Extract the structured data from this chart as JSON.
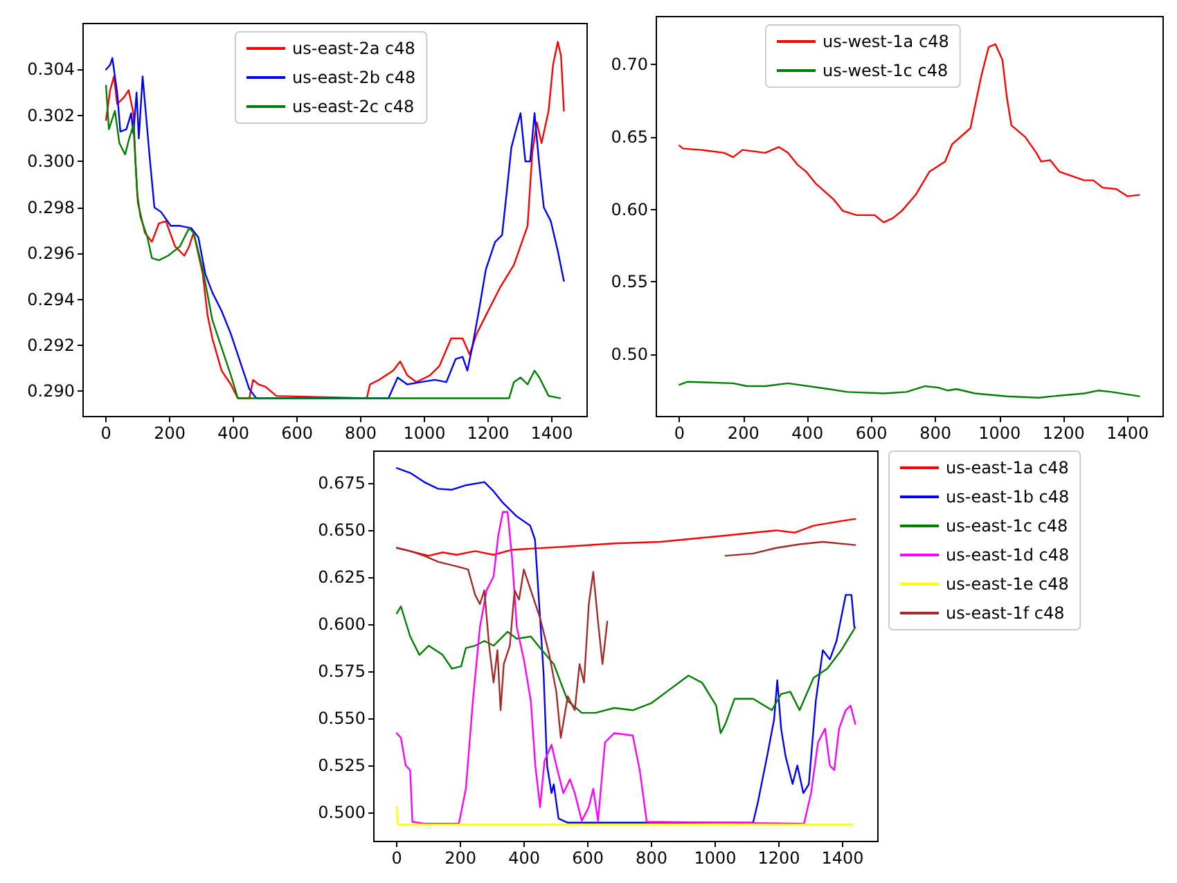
{
  "chart_data": [
    {
      "type": "line",
      "legend": "top",
      "xlim": [
        -72,
        1511
      ],
      "ylim": [
        0.2889,
        0.306
      ],
      "xticks": [
        0,
        200,
        400,
        600,
        800,
        1000,
        1200,
        1400
      ],
      "yticks": [
        {
          "value": 0.29,
          "label": "0.290"
        },
        {
          "value": 0.292,
          "label": "0.292"
        },
        {
          "value": 0.294,
          "label": "0.294"
        },
        {
          "value": 0.296,
          "label": "0.296"
        },
        {
          "value": 0.298,
          "label": "0.298"
        },
        {
          "value": 0.3,
          "label": "0.300"
        },
        {
          "value": 0.302,
          "label": "0.302"
        },
        {
          "value": 0.304,
          "label": "0.304"
        }
      ],
      "series": [
        {
          "name": "us-east-2a c48",
          "color": "#ff0000",
          "x": [
            0,
            13,
            25,
            35,
            57,
            71,
            86,
            93,
            100,
            122,
            144,
            166,
            188,
            217,
            246,
            261,
            275,
            304,
            319,
            334,
            363,
            392,
            414,
            450,
            462,
            479,
            501,
            535,
            819,
            829,
            858,
            902,
            924,
            946,
            975,
            1018,
            1047,
            1084,
            1120,
            1142,
            1164,
            1193,
            1237,
            1281,
            1324,
            1339,
            1353,
            1368,
            1390,
            1404,
            1419,
            1429,
            1434,
            1438
          ],
          "values": [
            0.3018,
            0.3031,
            0.3037,
            0.3025,
            0.3028,
            0.3031,
            0.3021,
            0.2999,
            0.2982,
            0.2969,
            0.2965,
            0.2973,
            0.2974,
            0.2963,
            0.2959,
            0.2963,
            0.2969,
            0.2951,
            0.2933,
            0.2923,
            0.2909,
            0.2903,
            0.2897,
            0.2897,
            0.2905,
            0.2903,
            0.2902,
            0.2898,
            0.2897,
            0.2903,
            0.2905,
            0.2909,
            0.2913,
            0.2907,
            0.2904,
            0.2907,
            0.2911,
            0.2923,
            0.2923,
            0.2916,
            0.2925,
            0.2933,
            0.2945,
            0.2955,
            0.2972,
            0.3004,
            0.3017,
            0.3008,
            0.3022,
            0.3042,
            0.3052,
            0.3046,
            0.3033,
            0.3022
          ]
        },
        {
          "name": "us-east-2b c48",
          "color": "#0000ff",
          "x": [
            0,
            13,
            20,
            35,
            45,
            64,
            79,
            86,
            96,
            103,
            115,
            127,
            137,
            152,
            173,
            203,
            232,
            268,
            290,
            312,
            334,
            363,
            392,
            421,
            450,
            472,
            887,
            916,
            946,
            989,
            1033,
            1069,
            1098,
            1120,
            1135,
            1150,
            1171,
            1193,
            1222,
            1244,
            1258,
            1273,
            1288,
            1302,
            1317,
            1332,
            1346,
            1361,
            1375,
            1397,
            1419,
            1438
          ],
          "values": [
            0.304,
            0.3042,
            0.3045,
            0.303,
            0.3013,
            0.3014,
            0.3021,
            0.3012,
            0.303,
            0.301,
            0.3037,
            0.3018,
            0.3002,
            0.298,
            0.2978,
            0.2972,
            0.2972,
            0.2971,
            0.2967,
            0.2951,
            0.2943,
            0.2935,
            0.2925,
            0.2913,
            0.2901,
            0.2897,
            0.2897,
            0.2906,
            0.2903,
            0.2904,
            0.2905,
            0.2904,
            0.2914,
            0.2915,
            0.2909,
            0.2919,
            0.2935,
            0.2953,
            0.2965,
            0.2968,
            0.2986,
            0.3006,
            0.3014,
            0.3021,
            0.3,
            0.3,
            0.3021,
            0.2998,
            0.298,
            0.2974,
            0.2961,
            0.2948
          ]
        },
        {
          "name": "us-east-2c c48",
          "color": "#008000",
          "x": [
            0,
            9,
            28,
            42,
            60,
            71,
            86,
            98,
            108,
            130,
            144,
            166,
            195,
            232,
            261,
            275,
            304,
            334,
            363,
            392,
            414,
            1266,
            1281,
            1302,
            1324,
            1346,
            1361,
            1390,
            1426
          ],
          "values": [
            0.3033,
            0.3014,
            0.3022,
            0.3008,
            0.3003,
            0.3009,
            0.3016,
            0.2986,
            0.2976,
            0.2967,
            0.2958,
            0.2957,
            0.2959,
            0.2963,
            0.2971,
            0.2969,
            0.2953,
            0.2931,
            0.2919,
            0.2907,
            0.2897,
            0.2897,
            0.2904,
            0.2906,
            0.2903,
            0.2909,
            0.2906,
            0.2898,
            0.2897
          ]
        }
      ]
    },
    {
      "type": "line",
      "legend": "top",
      "xlim": [
        -72,
        1511
      ],
      "ylim": [
        0.457,
        0.733
      ],
      "xticks": [
        0,
        200,
        400,
        600,
        800,
        1000,
        1200,
        1400
      ],
      "yticks": [
        {
          "value": 0.5,
          "label": "0.50"
        },
        {
          "value": 0.55,
          "label": "0.55"
        },
        {
          "value": 0.6,
          "label": "0.60"
        },
        {
          "value": 0.65,
          "label": "0.65"
        },
        {
          "value": 0.7,
          "label": "0.70"
        }
      ],
      "series": [
        {
          "name": "us-west-1a c48",
          "color": "#ff0000",
          "x": [
            0,
            11,
            68,
            140,
            168,
            197,
            268,
            311,
            339,
            368,
            396,
            425,
            481,
            510,
            553,
            610,
            638,
            667,
            695,
            738,
            781,
            830,
            852,
            909,
            923,
            944,
            966,
            987,
            1009,
            1023,
            1037,
            1080,
            1115,
            1130,
            1158,
            1187,
            1265,
            1293,
            1322,
            1365,
            1400,
            1436
          ],
          "values": [
            0.644,
            0.642,
            0.641,
            0.639,
            0.636,
            0.641,
            0.639,
            0.643,
            0.639,
            0.631,
            0.626,
            0.618,
            0.607,
            0.599,
            0.596,
            0.596,
            0.591,
            0.594,
            0.599,
            0.61,
            0.626,
            0.633,
            0.645,
            0.656,
            0.671,
            0.693,
            0.712,
            0.714,
            0.703,
            0.677,
            0.658,
            0.65,
            0.639,
            0.633,
            0.634,
            0.626,
            0.62,
            0.62,
            0.615,
            0.614,
            0.609,
            0.61
          ]
        },
        {
          "name": "us-west-1c c48",
          "color": "#008000",
          "x": [
            0,
            26,
            168,
            211,
            268,
            339,
            467,
            524,
            638,
            709,
            766,
            809,
            838,
            866,
            923,
            1023,
            1123,
            1165,
            1265,
            1308,
            1350,
            1436
          ],
          "values": [
            0.479,
            0.481,
            0.48,
            0.478,
            0.478,
            0.48,
            0.476,
            0.474,
            0.473,
            0.474,
            0.478,
            0.477,
            0.475,
            0.476,
            0.473,
            0.471,
            0.47,
            0.471,
            0.473,
            0.475,
            0.474,
            0.471
          ]
        }
      ]
    },
    {
      "type": "line",
      "legend": "right",
      "xlim": [
        -72,
        1511
      ],
      "ylim": [
        0.4846,
        0.6921
      ],
      "xticks": [
        0,
        200,
        400,
        600,
        800,
        1000,
        1200,
        1400
      ],
      "yticks": [
        {
          "value": 0.5,
          "label": "0.500"
        },
        {
          "value": 0.525,
          "label": "0.525"
        },
        {
          "value": 0.55,
          "label": "0.550"
        },
        {
          "value": 0.575,
          "label": "0.575"
        },
        {
          "value": 0.6,
          "label": "0.600"
        },
        {
          "value": 0.625,
          "label": "0.625"
        },
        {
          "value": 0.65,
          "label": "0.650"
        },
        {
          "value": 0.675,
          "label": "0.675"
        }
      ],
      "series": [
        {
          "name": "us-east-1a c48",
          "color": "#ff0000",
          "x": [
            0,
            100,
            144,
            188,
            246,
            304,
            362,
            537,
            683,
            828,
            1047,
            1119,
            1192,
            1250,
            1309,
            1396,
            1440
          ],
          "values": [
            0.6407,
            0.6365,
            0.6383,
            0.637,
            0.639,
            0.637,
            0.6397,
            0.6414,
            0.6431,
            0.6439,
            0.6475,
            0.6488,
            0.65,
            0.6488,
            0.6525,
            0.655,
            0.6561
          ]
        },
        {
          "name": "us-east-1b c48",
          "color": "#0000ff",
          "x": [
            0,
            42,
            86,
            130,
            173,
            217,
            275,
            304,
            333,
            377,
            419,
            434,
            450,
            461,
            472,
            486,
            493,
            508,
            537,
            1119,
            1134,
            1163,
            1185,
            1195,
            1207,
            1221,
            1243,
            1258,
            1277,
            1294,
            1316,
            1338,
            1360,
            1381,
            1410,
            1428,
            1437
          ],
          "values": [
            0.6831,
            0.6806,
            0.6757,
            0.6721,
            0.6716,
            0.674,
            0.6757,
            0.6708,
            0.6647,
            0.6574,
            0.6525,
            0.6451,
            0.6034,
            0.574,
            0.525,
            0.5103,
            0.515,
            0.4968,
            0.4946,
            0.4946,
            0.5054,
            0.5299,
            0.5495,
            0.5703,
            0.5446,
            0.5299,
            0.5152,
            0.525,
            0.5103,
            0.515,
            0.5593,
            0.5863,
            0.5814,
            0.5912,
            0.6157,
            0.6157,
            0.5985
          ]
        },
        {
          "name": "us-east-1c c48",
          "color": "#008000",
          "x": [
            0,
            13,
            42,
            71,
            100,
            144,
            173,
            202,
            217,
            246,
            275,
            304,
            348,
            377,
            421,
            450,
            493,
            537,
            581,
            624,
            683,
            741,
            799,
            857,
            916,
            959,
            1003,
            1017,
            1032,
            1061,
            1119,
            1178,
            1207,
            1236,
            1265,
            1309,
            1352,
            1396,
            1440
          ],
          "values": [
            0.6059,
            0.6096,
            0.5936,
            0.5838,
            0.5887,
            0.5838,
            0.5765,
            0.5777,
            0.5875,
            0.5887,
            0.5912,
            0.5887,
            0.5961,
            0.5924,
            0.5936,
            0.5875,
            0.5789,
            0.5593,
            0.553,
            0.553,
            0.5556,
            0.5544,
            0.5581,
            0.5654,
            0.5728,
            0.569,
            0.5569,
            0.5422,
            0.5471,
            0.5605,
            0.5605,
            0.5544,
            0.563,
            0.5642,
            0.5544,
            0.5716,
            0.5765,
            0.5863,
            0.5985
          ]
        },
        {
          "name": "us-east-1d c48",
          "color": "#ff00ff",
          "x": [
            0,
            13,
            28,
            42,
            49,
            86,
            195,
            217,
            239,
            261,
            282,
            304,
            319,
            333,
            348,
            362,
            377,
            399,
            421,
            435,
            450,
            464,
            486,
            501,
            523,
            544,
            559,
            581,
            603,
            617,
            632,
            654,
            683,
            741,
            763,
            785,
            1279,
            1301,
            1323,
            1345,
            1360,
            1374,
            1389,
            1410,
            1425,
            1440
          ],
          "values": [
            0.5422,
            0.5397,
            0.525,
            0.5225,
            0.4951,
            0.4941,
            0.4941,
            0.5127,
            0.5593,
            0.5985,
            0.6181,
            0.6255,
            0.6475,
            0.6598,
            0.6598,
            0.6353,
            0.5985,
            0.5814,
            0.5593,
            0.525,
            0.5029,
            0.5275,
            0.536,
            0.525,
            0.5103,
            0.5177,
            0.5103,
            0.4956,
            0.5029,
            0.5127,
            0.4956,
            0.5373,
            0.5422,
            0.541,
            0.5225,
            0.4951,
            0.4941,
            0.5103,
            0.5373,
            0.5446,
            0.525,
            0.5225,
            0.5446,
            0.5544,
            0.5569,
            0.5471
          ]
        },
        {
          "name": "us-east-1e c48",
          "color": "#ffff00",
          "x": [
            0,
            3,
            1432
          ],
          "values": [
            0.5029,
            0.4936,
            0.4936
          ]
        },
        {
          "name": "us-east-1f c48",
          "color": "#a52a2a",
          "x": [
            0,
            42,
            86,
            130,
            188,
            224,
            246,
            261,
            275,
            290,
            304,
            316,
            326,
            336,
            355,
            370,
            384,
            399,
            450,
            479,
            501,
            515,
            537,
            559,
            574,
            588,
            603,
            617,
            632,
            646,
            661,
            850,
            1032,
            1119,
            1192,
            1265,
            1338,
            1440
          ],
          "values": [
            0.6407,
            0.639,
            0.6365,
            0.6333,
            0.6309,
            0.6292,
            0.6157,
            0.6108,
            0.6181,
            0.5887,
            0.5691,
            0.5863,
            0.5544,
            0.5789,
            0.5887,
            0.6181,
            0.6132,
            0.6292,
            0.6034,
            0.5838,
            0.5642,
            0.5397,
            0.5618,
            0.5544,
            0.5789,
            0.5691,
            0.6108,
            0.6279,
            0.6015,
            0.5789,
            0.6015,
            null,
            0.6365,
            0.6377,
            0.6407,
            0.6426,
            0.6439,
            0.6422
          ]
        }
      ]
    }
  ]
}
